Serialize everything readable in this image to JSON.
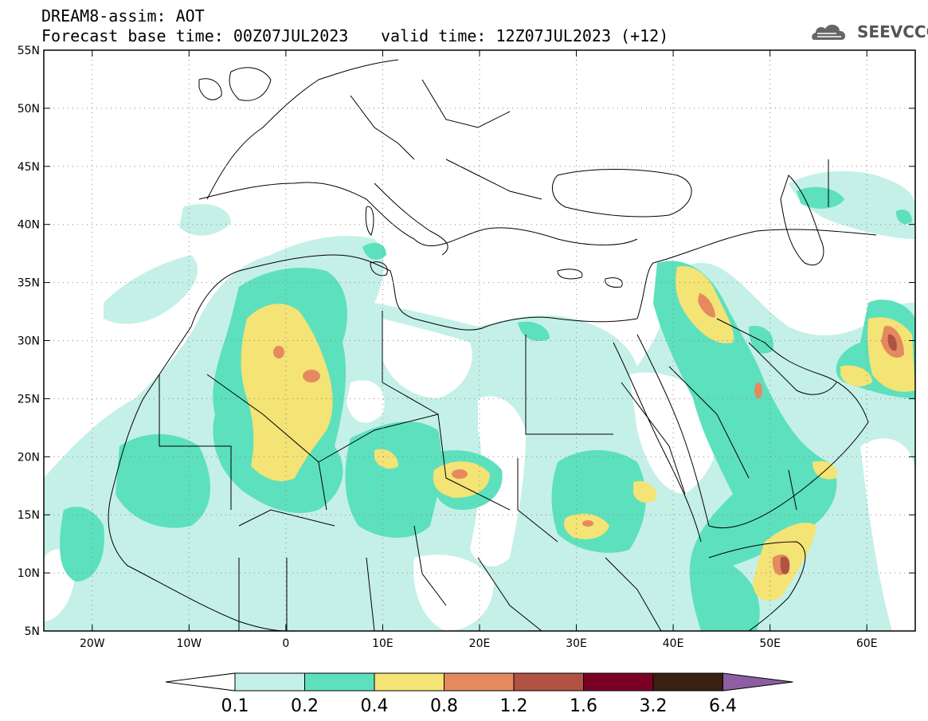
{
  "header": {
    "title": "DREAM8-assim: AOT",
    "base_time": "Forecast base time: 00Z07JUL2023",
    "valid_time": "valid time: 12Z07JUL2023 (+12)"
  },
  "logo": {
    "text": "SEEVCCC",
    "icon": "cloud-icon"
  },
  "map": {
    "lon_range": [
      -25,
      65
    ],
    "lat_range": [
      5,
      55
    ],
    "lon_ticks": [
      {
        "value": -20,
        "label": "20W"
      },
      {
        "value": -10,
        "label": "10W"
      },
      {
        "value": 0,
        "label": "0"
      },
      {
        "value": 10,
        "label": "10E"
      },
      {
        "value": 20,
        "label": "20E"
      },
      {
        "value": 30,
        "label": "30E"
      },
      {
        "value": 40,
        "label": "40E"
      },
      {
        "value": 50,
        "label": "50E"
      },
      {
        "value": 60,
        "label": "60E"
      }
    ],
    "lat_ticks": [
      {
        "value": 55,
        "label": "55N"
      },
      {
        "value": 50,
        "label": "50N"
      },
      {
        "value": 45,
        "label": "45N"
      },
      {
        "value": 40,
        "label": "40N"
      },
      {
        "value": 35,
        "label": "35N"
      },
      {
        "value": 30,
        "label": "30N"
      },
      {
        "value": 25,
        "label": "25N"
      },
      {
        "value": 20,
        "label": "20N"
      },
      {
        "value": 15,
        "label": "15N"
      },
      {
        "value": 10,
        "label": "10N"
      },
      {
        "value": 5,
        "label": "5N"
      }
    ],
    "grid": true
  },
  "colorbar": {
    "levels": [
      "0.1",
      "0.2",
      "0.4",
      "0.8",
      "1.2",
      "1.6",
      "3.2",
      "6.4"
    ],
    "colors": [
      "#ffffff",
      "#c4f0e8",
      "#5de0bd",
      "#f4e375",
      "#e58a5e",
      "#b05243",
      "#7a0026",
      "#3a2010",
      "#8e5ea3"
    ]
  }
}
